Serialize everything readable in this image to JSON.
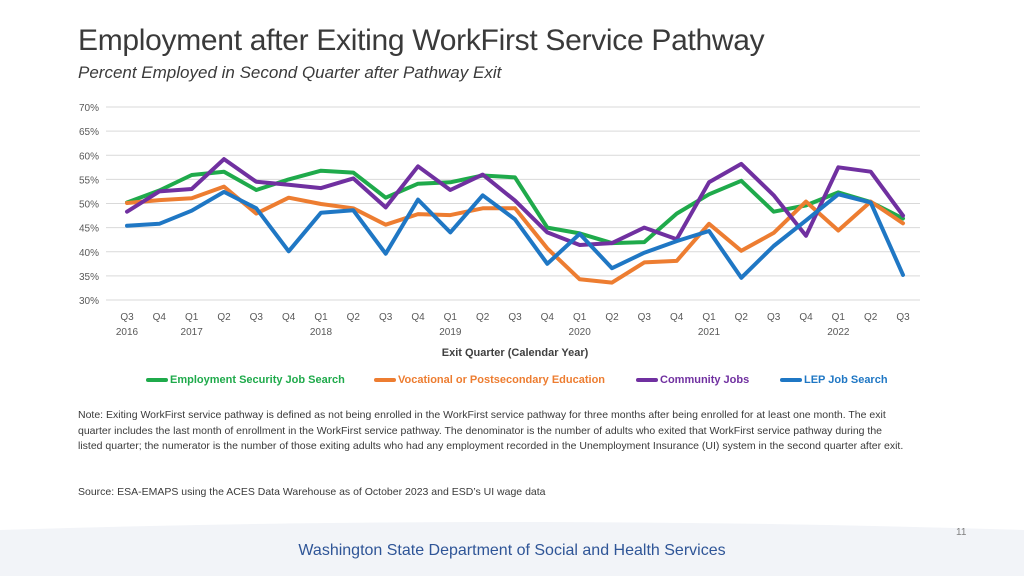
{
  "title": "Employment after Exiting WorkFirst Service Pathway",
  "subtitle": "Percent Employed in Second Quarter after Pathway Exit",
  "note": "Note: Exiting WorkFirst service pathway is defined as not being enrolled in the WorkFirst service pathway for three months after being enrolled for at least one month. The exit quarter includes the last month of enrollment in the WorkFirst service pathway. The denominator is the number of adults who exited that WorkFirst service pathway during the listed quarter; the numerator is the number of those exiting adults who had any employment recorded in the Unemployment Insurance (UI) system in the second quarter after exit.",
  "source": "Source: ESA-EMAPS using the ACES Data Warehouse as of October 2023 and ESD’s UI wage data",
  "page_number": "11",
  "agency": "Washington State Department of Social and Health Services",
  "chart_data": {
    "type": "line",
    "title": "Employment after Exiting WorkFirst Service Pathway",
    "subtitle": "Percent Employed in Second Quarter after Pathway Exit",
    "xlabel": "Exit Quarter (Calendar Year)",
    "ylabel": "",
    "ylim": [
      30,
      70
    ],
    "yticks": [
      30,
      35,
      40,
      45,
      50,
      55,
      60,
      65,
      70
    ],
    "ytick_labels": [
      "30%",
      "35%",
      "40%",
      "45%",
      "50%",
      "55%",
      "60%",
      "65%",
      "70%"
    ],
    "grid": true,
    "legend_position": "bottom",
    "categories": [
      "Q3",
      "Q4",
      "Q1",
      "Q2",
      "Q3",
      "Q4",
      "Q1",
      "Q2",
      "Q3",
      "Q4",
      "Q1",
      "Q2",
      "Q3",
      "Q4",
      "Q1",
      "Q2",
      "Q3",
      "Q4",
      "Q1",
      "Q2",
      "Q3",
      "Q4",
      "Q1",
      "Q2",
      "Q3"
    ],
    "year_labels": [
      {
        "index": 0,
        "label": "2016"
      },
      {
        "index": 2,
        "label": "2017"
      },
      {
        "index": 6,
        "label": "2018"
      },
      {
        "index": 10,
        "label": "2019"
      },
      {
        "index": 14,
        "label": "2020"
      },
      {
        "index": 18,
        "label": "2021"
      },
      {
        "index": 22,
        "label": "2022"
      }
    ],
    "series": [
      {
        "name": "Employment Security Job Search",
        "color": "#1faa4b",
        "values": [
          50.2,
          52.7,
          55.9,
          56.6,
          52.8,
          55.0,
          56.8,
          56.4,
          51.2,
          54.1,
          54.4,
          55.8,
          55.4,
          45.0,
          43.8,
          41.8,
          42.0,
          47.9,
          51.9,
          54.7,
          48.3,
          49.6,
          52.3,
          50.3,
          46.9
        ]
      },
      {
        "name": "Vocational or Postsecondary Education",
        "color": "#ed7d31",
        "values": [
          50.1,
          50.7,
          51.1,
          53.5,
          47.9,
          51.2,
          49.9,
          49.0,
          45.6,
          47.8,
          47.6,
          49.0,
          49.0,
          40.7,
          34.3,
          33.6,
          37.8,
          38.1,
          45.8,
          40.2,
          43.9,
          50.4,
          44.4,
          50.4,
          45.9
        ]
      },
      {
        "name": "Community Jobs",
        "color": "#7030a0",
        "values": [
          48.3,
          52.5,
          53.0,
          59.2,
          54.5,
          53.9,
          53.2,
          55.2,
          49.2,
          57.7,
          52.8,
          56.0,
          50.6,
          44.0,
          41.4,
          41.8,
          45.0,
          42.6,
          54.4,
          58.2,
          51.7,
          43.3,
          57.5,
          56.6,
          47.5
        ]
      },
      {
        "name": "LEP Job Search",
        "color": "#1f77c4",
        "values": [
          45.4,
          45.8,
          48.5,
          52.4,
          49.0,
          40.1,
          48.1,
          48.6,
          39.6,
          50.8,
          44.0,
          51.7,
          46.7,
          37.5,
          43.7,
          36.6,
          39.8,
          42.2,
          44.3,
          34.6,
          41.2,
          46.5,
          51.9,
          50.2,
          35.2
        ]
      }
    ]
  }
}
